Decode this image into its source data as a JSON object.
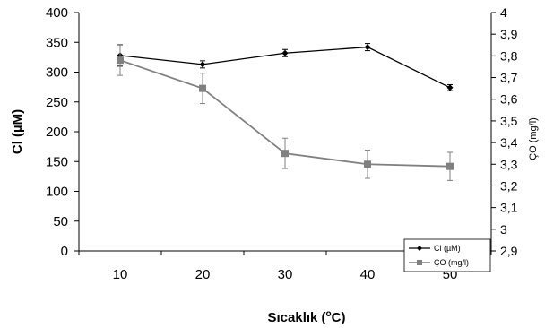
{
  "chart_data": {
    "type": "line",
    "x": [
      10,
      20,
      30,
      40,
      50
    ],
    "xlabel_main": "Sıcaklık (",
    "xlabel_sup": "o",
    "xlabel_end": "C)",
    "ylabel": "Cl (µM)",
    "ylabel_right": "ÇO (mg/l)",
    "ylim": [
      0,
      400
    ],
    "yticks": [
      0,
      50,
      100,
      150,
      200,
      250,
      300,
      350,
      400
    ],
    "ylim_right": [
      2.9,
      4
    ],
    "yticks_right": [
      "2,9",
      "3",
      "3,1",
      "3,2",
      "3,3",
      "3,4",
      "3,5",
      "3,6",
      "3,7",
      "3,8",
      "3,9",
      "4"
    ],
    "grid": false,
    "legend_position": "bottom-right",
    "series": [
      {
        "name": "Cl (µM)",
        "axis": "left",
        "color": "#000000",
        "marker": "diamond",
        "values": [
          328,
          313,
          332,
          342,
          274
        ],
        "errors": [
          18,
          6,
          6,
          6,
          5
        ]
      },
      {
        "name": "ÇO (mg/l)",
        "axis": "right",
        "color": "#808080",
        "marker": "square",
        "values": [
          3.78,
          3.65,
          3.35,
          3.3,
          3.29
        ],
        "errors": [
          0.07,
          0.07,
          0.07,
          0.065,
          0.065
        ]
      }
    ]
  }
}
